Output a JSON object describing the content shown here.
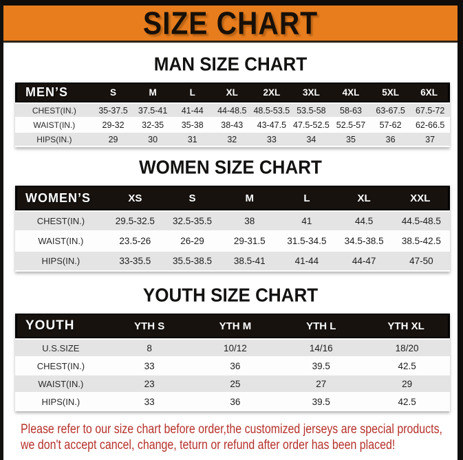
{
  "page_title": "SIZE CHART",
  "colors": {
    "banner_orange": "#e87d1e",
    "table_header_black": "#17120e",
    "row_shaded_gray": "#e4e4e4",
    "row_plain_white": "#fdfdfd",
    "note_red": "#b5312b"
  },
  "sections": [
    {
      "title": "MAN SIZE CHART",
      "table": {
        "header": [
          "MEN’S",
          "S",
          "M",
          "L",
          "XL",
          "2XL",
          "3XL",
          "4XL",
          "5XL",
          "6XL"
        ],
        "rows": [
          {
            "label": "CHEST(IN.)",
            "values": [
              "35-37.5",
              "37.5-41",
              "41-44",
              "44-48.5",
              "48.5-53.5",
              "53.5-58",
              "58-63",
              "63-67.5",
              "67.5-72"
            ]
          },
          {
            "label": "WAIST(IN.)",
            "values": [
              "29-32",
              "32-35",
              "35-38",
              "38-43",
              "43-47.5",
              "47.5-52.5",
              "52.5-57",
              "57-62",
              "62-66.5"
            ]
          },
          {
            "label": "HIPS(IN.)",
            "values": [
              "29",
              "30",
              "31",
              "32",
              "33",
              "34",
              "35",
              "36",
              "37"
            ]
          }
        ]
      }
    },
    {
      "title": "WOMEN SIZE CHART",
      "table": {
        "header": [
          "WOMEN’S",
          "XS",
          "S",
          "M",
          "L",
          "XL",
          "XXL"
        ],
        "rows": [
          {
            "label": "CHEST(IN.)",
            "values": [
              "29.5-32.5",
              "32.5-35.5",
              "38",
              "41",
              "44.5",
              "44.5-48.5"
            ]
          },
          {
            "label": "WAIST(IN.)",
            "values": [
              "23.5-26",
              "26-29",
              "29-31.5",
              "31.5-34.5",
              "34.5-38.5",
              "38.5-42.5"
            ]
          },
          {
            "label": "HIPS(IN.)",
            "values": [
              "33-35.5",
              "35.5-38.5",
              "38.5-41",
              "41-44",
              "44-47",
              "47-50"
            ]
          }
        ]
      }
    },
    {
      "title": "YOUTH SIZE CHART",
      "table": {
        "header": [
          "YOUTH",
          "YTH S",
          "YTH M",
          "YTH L",
          "YTH XL"
        ],
        "rows": [
          {
            "label": "U.S.SIZE",
            "values": [
              "8",
              "10/12",
              "14/16",
              "18/20"
            ]
          },
          {
            "label": "CHEST(IN.)",
            "values": [
              "33",
              "36",
              "39.5",
              "42.5"
            ]
          },
          {
            "label": "WAIST(IN.)",
            "values": [
              "23",
              "25",
              "27",
              "29"
            ]
          },
          {
            "label": "HIPS(IN.)",
            "values": [
              "33",
              "36",
              "39.5",
              "42.5"
            ]
          }
        ]
      }
    }
  ],
  "footer_note": {
    "line1": "Please refer to our size chart before order,the customized jerseys are special products,",
    "line2": "we don't accept cancel, change, teturn or refund after order has been placed!"
  }
}
